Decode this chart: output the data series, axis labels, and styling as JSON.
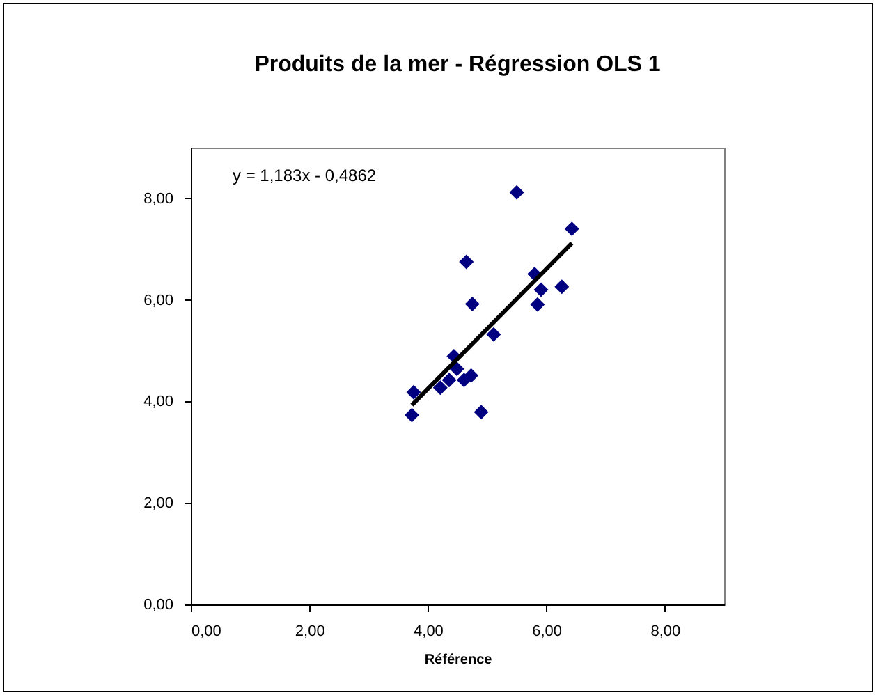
{
  "chart_data": {
    "type": "scatter",
    "title": "Produits de la mer - Régression OLS 1",
    "xlabel": "Référence",
    "annotations": [
      "y = 1,183x - 0,4862"
    ],
    "xlim": [
      0,
      9
    ],
    "ylim": [
      0,
      9
    ],
    "xticks": [
      {
        "value": 0,
        "label": "0,00"
      },
      {
        "value": 2,
        "label": "2,00"
      },
      {
        "value": 4,
        "label": "4,00"
      },
      {
        "value": 6,
        "label": "6,00"
      },
      {
        "value": 8,
        "label": "8,00"
      }
    ],
    "yticks": [
      {
        "value": 0,
        "label": "0,00"
      },
      {
        "value": 2,
        "label": "2,00"
      },
      {
        "value": 4,
        "label": "4,00"
      },
      {
        "value": 6,
        "label": "6,00"
      },
      {
        "value": 8,
        "label": "8,00"
      }
    ],
    "grid": false,
    "series": [
      {
        "marker": "diamond",
        "color": "#000080",
        "x": [
          3.73,
          3.76,
          4.21,
          4.36,
          4.44,
          4.49,
          4.61,
          4.73,
          4.9,
          4.65,
          4.75,
          5.11,
          5.5,
          5.8,
          5.91,
          5.85,
          6.26,
          6.43
        ],
        "values": [
          3.73,
          4.18,
          4.27,
          4.42,
          4.89,
          4.64,
          4.42,
          4.51,
          3.79,
          6.75,
          5.92,
          5.32,
          8.12,
          6.51,
          6.2,
          5.91,
          6.26,
          7.4
        ]
      },
      {
        "type": "line",
        "color": "#000000",
        "x": [
          3.73,
          6.43
        ],
        "values": [
          3.93,
          7.12
        ]
      }
    ]
  }
}
